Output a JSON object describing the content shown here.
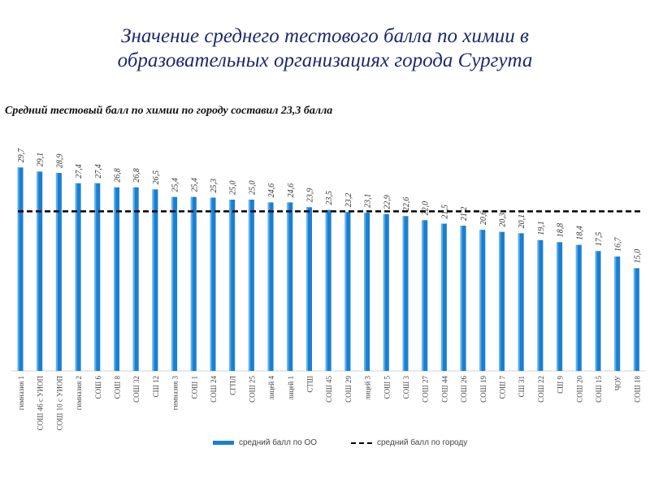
{
  "title": [
    "Значение среднего тестового балла по химии в",
    "образовательных организациях города Сургута"
  ],
  "chart_data": {
    "type": "bar",
    "title": "Средний тестовый балл по химии по городу составил 23,3 балла",
    "categories": [
      "гимназия 1",
      "СОШ 46 с УИОП",
      "СОШ 10 с УИОП",
      "гимназия 2",
      "СОШ 6",
      "СОШ 8",
      "СОШ 32",
      "СШ 12",
      "гимназия 3",
      "СОШ 1",
      "СОШ 24",
      "СГПЛ",
      "СОШ 25",
      "лицей 4",
      "лицей 1",
      "СТШ",
      "СОШ 45",
      "СОШ 29",
      "лицей 3",
      "СОШ 5",
      "СОШ 3",
      "СОШ 27",
      "СОШ 44",
      "СОШ 26",
      "СОШ 19",
      "СОШ 7",
      "СШ 31",
      "СОШ 22",
      "СШ 9",
      "СОШ 20",
      "СОШ 15",
      "ЧОУ",
      "СОШ 18"
    ],
    "series": [
      {
        "name": "средний балл по ОО",
        "type": "bar",
        "color": "#1a7fd0",
        "values": [
          29.7,
          29.1,
          28.9,
          27.4,
          27.4,
          26.8,
          26.8,
          26.5,
          25.4,
          25.4,
          25.3,
          25.0,
          25.0,
          24.6,
          24.6,
          23.9,
          23.5,
          23.2,
          23.1,
          22.9,
          22.6,
          22.0,
          21.5,
          21.2,
          20.6,
          20.3,
          20.1,
          19.1,
          18.8,
          18.4,
          17.5,
          16.7,
          15.0
        ],
        "labels": [
          "29,7",
          "29,1",
          "28,9",
          "27,4",
          "27,4",
          "26,8",
          "26,8",
          "26,5",
          "25,4",
          "25,4",
          "25,3",
          "25,0",
          "25,0",
          "24,6",
          "24,6",
          "23,9",
          "23,5",
          "23,2",
          "23,1",
          "22,9",
          "22,6",
          "22,0",
          "21,5",
          "21,2",
          "20,6",
          "20,3",
          "20,1",
          "19,1",
          "18,8",
          "18,4",
          "17,5",
          "16,7",
          "15,0"
        ]
      },
      {
        "name": "средний балл по городу",
        "type": "line",
        "style": "dashed",
        "color": "#000000",
        "value": 23.3
      }
    ],
    "ylim": [
      0,
      31
    ],
    "grid": false,
    "legend": "bottom"
  }
}
